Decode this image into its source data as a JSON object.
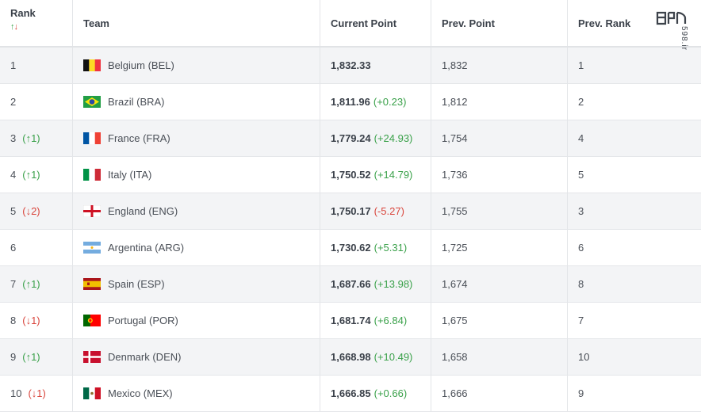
{
  "header": {
    "rank": "Rank",
    "sort_up": "↑",
    "sort_down": "↓",
    "team": "Team",
    "current_point": "Current Point",
    "prev_point": "Prev. Point",
    "prev_rank": "Prev. Rank",
    "watermark": "598.ir"
  },
  "rows": [
    {
      "rank": "1",
      "change": "",
      "dir": "",
      "flag": "bel",
      "team": "Belgium (BEL)",
      "point": "1,832.33",
      "delta": "",
      "delta_dir": "",
      "prev_point": "1,832",
      "prev_rank": "1"
    },
    {
      "rank": "2",
      "change": "",
      "dir": "",
      "flag": "bra",
      "team": "Brazil (BRA)",
      "point": "1,811.96",
      "delta": "(+0.23)",
      "delta_dir": "up",
      "prev_point": "1,812",
      "prev_rank": "2"
    },
    {
      "rank": "3",
      "change": "(↑1)",
      "dir": "up",
      "flag": "fra",
      "team": "France (FRA)",
      "point": "1,779.24",
      "delta": "(+24.93)",
      "delta_dir": "up",
      "prev_point": "1,754",
      "prev_rank": "4"
    },
    {
      "rank": "4",
      "change": "(↑1)",
      "dir": "up",
      "flag": "ita",
      "team": "Italy (ITA)",
      "point": "1,750.52",
      "delta": "(+14.79)",
      "delta_dir": "up",
      "prev_point": "1,736",
      "prev_rank": "5"
    },
    {
      "rank": "5",
      "change": "(↓2)",
      "dir": "dn",
      "flag": "eng",
      "team": "England (ENG)",
      "point": "1,750.17",
      "delta": "(-5.27)",
      "delta_dir": "dn",
      "prev_point": "1,755",
      "prev_rank": "3"
    },
    {
      "rank": "6",
      "change": "",
      "dir": "",
      "flag": "arg",
      "team": "Argentina (ARG)",
      "point": "1,730.62",
      "delta": "(+5.31)",
      "delta_dir": "up",
      "prev_point": "1,725",
      "prev_rank": "6"
    },
    {
      "rank": "7",
      "change": "(↑1)",
      "dir": "up",
      "flag": "esp",
      "team": "Spain (ESP)",
      "point": "1,687.66",
      "delta": "(+13.98)",
      "delta_dir": "up",
      "prev_point": "1,674",
      "prev_rank": "8"
    },
    {
      "rank": "8",
      "change": "(↓1)",
      "dir": "dn",
      "flag": "por",
      "team": "Portugal (POR)",
      "point": "1,681.74",
      "delta": "(+6.84)",
      "delta_dir": "up",
      "prev_point": "1,675",
      "prev_rank": "7"
    },
    {
      "rank": "9",
      "change": "(↑1)",
      "dir": "up",
      "flag": "den",
      "team": "Denmark (DEN)",
      "point": "1,668.98",
      "delta": "(+10.49)",
      "delta_dir": "up",
      "prev_point": "1,658",
      "prev_rank": "10"
    },
    {
      "rank": "10",
      "change": "(↓1)",
      "dir": "dn",
      "flag": "mex",
      "team": "Mexico (MEX)",
      "point": "1,666.85",
      "delta": "(+0.66)",
      "delta_dir": "up",
      "prev_point": "1,666",
      "prev_rank": "9"
    }
  ],
  "colors": {
    "up": "#3aa14a",
    "down": "#d9453c",
    "row_alt": "#f3f4f6"
  }
}
